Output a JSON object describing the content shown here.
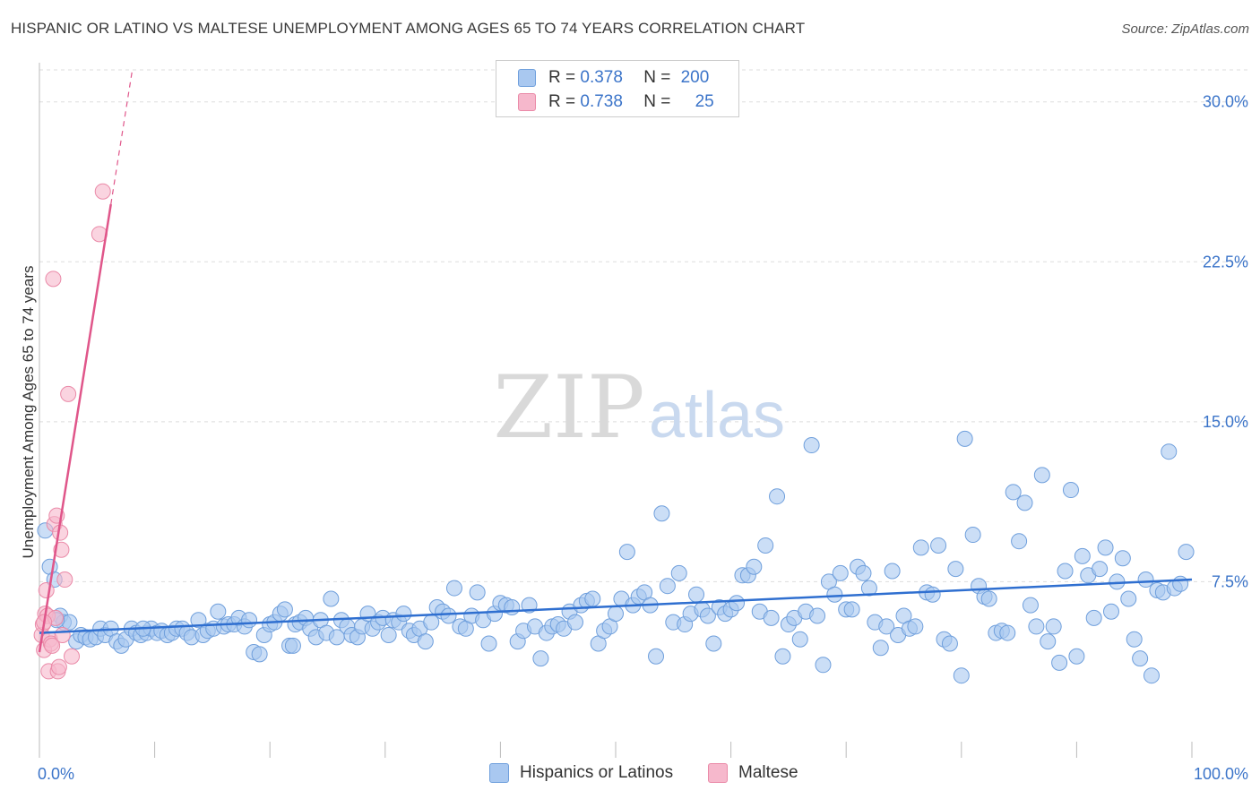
{
  "title": "HISPANIC OR LATINO VS MALTESE UNEMPLOYMENT AMONG AGES 65 TO 74 YEARS CORRELATION CHART",
  "source": "Source: ZipAtlas.com",
  "watermark": {
    "zip": "ZIP",
    "atlas": "atlas"
  },
  "legend": {
    "rows": [
      {
        "r_label": "R =",
        "r_value": "0.378",
        "n_label": "N =",
        "n_value": "200"
      },
      {
        "r_label": "R =",
        "r_value": "0.738",
        "n_label": "N =",
        "n_value": "25"
      }
    ]
  },
  "bottom_legend": [
    "Hispanics or Latinos",
    "Maltese"
  ],
  "colors": {
    "blue_fill": "#a9c8f0",
    "blue_stroke": "#6f9fdc",
    "blue_line": "#2f6fd0",
    "pink_fill": "#f6b8cc",
    "pink_stroke": "#ea8aa8",
    "pink_line": "#e0568a",
    "tick_text": "#3b74c9",
    "grid": "#dddddd"
  },
  "chart_data": {
    "type": "scatter",
    "title": "HISPANIC OR LATINO VS MALTESE UNEMPLOYMENT AMONG AGES 65 TO 74 YEARS CORRELATION CHART",
    "xlabel": "",
    "ylabel": "Unemployment Among Ages 65 to 74 years",
    "xlim": [
      0,
      100
    ],
    "ylim": [
      0,
      31.5
    ],
    "x_tick_labels": [
      "0.0%",
      "100.0%"
    ],
    "y_ticks": [
      7.5,
      15.0,
      22.5,
      30.0
    ],
    "y_tick_labels": [
      "7.5%",
      "15.0%",
      "22.5%",
      "30.0%"
    ],
    "grid": true,
    "legend_position": "top-center",
    "series": [
      {
        "name": "Hispanics or Latinos",
        "R": 0.378,
        "N": 200,
        "trend": {
          "x": [
            0,
            100
          ],
          "y": [
            5.1,
            7.6
          ]
        },
        "points": [
          [
            0.5,
            9.9
          ],
          [
            0.9,
            8.2
          ],
          [
            1.3,
            7.6
          ],
          [
            1.8,
            5.9
          ],
          [
            2.1,
            5.6
          ],
          [
            2.6,
            5.6
          ],
          [
            3.2,
            4.7
          ],
          [
            3.6,
            5.0
          ],
          [
            4.0,
            4.9
          ],
          [
            4.4,
            4.8
          ],
          [
            4.9,
            4.9
          ],
          [
            5.3,
            5.3
          ],
          [
            5.7,
            5.0
          ],
          [
            6.2,
            5.3
          ],
          [
            6.7,
            4.7
          ],
          [
            7.1,
            4.5
          ],
          [
            7.5,
            4.8
          ],
          [
            8.0,
            5.3
          ],
          [
            8.4,
            5.1
          ],
          [
            8.8,
            5.0
          ],
          [
            9.3,
            5.1
          ],
          [
            9.7,
            5.3
          ],
          [
            10.2,
            5.1
          ],
          [
            10.6,
            5.2
          ],
          [
            11.1,
            5.0
          ],
          [
            11.5,
            5.1
          ],
          [
            11.9,
            5.3
          ],
          [
            12.4,
            5.3
          ],
          [
            12.8,
            5.1
          ],
          [
            13.2,
            4.9
          ],
          [
            13.8,
            5.7
          ],
          [
            14.2,
            5.0
          ],
          [
            14.6,
            5.2
          ],
          [
            15.1,
            5.3
          ],
          [
            15.5,
            6.1
          ],
          [
            16.0,
            5.4
          ],
          [
            16.4,
            5.5
          ],
          [
            16.9,
            5.5
          ],
          [
            17.3,
            5.8
          ],
          [
            17.8,
            5.4
          ],
          [
            18.2,
            5.7
          ],
          [
            18.6,
            4.2
          ],
          [
            19.1,
            4.1
          ],
          [
            19.5,
            5.0
          ],
          [
            20.0,
            5.5
          ],
          [
            20.4,
            5.6
          ],
          [
            20.9,
            6.0
          ],
          [
            21.3,
            6.2
          ],
          [
            21.7,
            4.5
          ],
          [
            22.2,
            5.5
          ],
          [
            22.6,
            5.6
          ],
          [
            23.1,
            5.8
          ],
          [
            23.5,
            5.3
          ],
          [
            24.0,
            4.9
          ],
          [
            24.4,
            5.7
          ],
          [
            24.9,
            5.1
          ],
          [
            25.3,
            6.7
          ],
          [
            25.8,
            4.9
          ],
          [
            26.2,
            5.7
          ],
          [
            26.7,
            5.4
          ],
          [
            27.1,
            5.0
          ],
          [
            27.6,
            4.9
          ],
          [
            28.0,
            5.4
          ],
          [
            28.5,
            6.0
          ],
          [
            28.9,
            5.3
          ],
          [
            29.4,
            5.6
          ],
          [
            29.8,
            5.8
          ],
          [
            30.3,
            5.0
          ],
          [
            30.7,
            5.7
          ],
          [
            31.2,
            5.6
          ],
          [
            31.6,
            6.0
          ],
          [
            32.1,
            5.2
          ],
          [
            32.5,
            5.0
          ],
          [
            33.0,
            5.3
          ],
          [
            33.5,
            4.7
          ],
          [
            34.0,
            5.6
          ],
          [
            34.5,
            6.3
          ],
          [
            35.0,
            6.1
          ],
          [
            35.5,
            5.9
          ],
          [
            36.0,
            7.2
          ],
          [
            36.5,
            5.4
          ],
          [
            37.0,
            5.3
          ],
          [
            37.5,
            5.9
          ],
          [
            38.0,
            7.0
          ],
          [
            38.5,
            5.7
          ],
          [
            39.0,
            4.6
          ],
          [
            39.5,
            6.0
          ],
          [
            40.0,
            6.5
          ],
          [
            40.5,
            6.4
          ],
          [
            41.0,
            6.3
          ],
          [
            41.5,
            4.7
          ],
          [
            42.0,
            5.2
          ],
          [
            42.5,
            6.4
          ],
          [
            43.0,
            5.4
          ],
          [
            43.5,
            3.9
          ],
          [
            44.0,
            5.1
          ],
          [
            44.5,
            5.4
          ],
          [
            45.0,
            5.5
          ],
          [
            45.5,
            5.3
          ],
          [
            46.0,
            6.1
          ],
          [
            46.5,
            5.6
          ],
          [
            47.0,
            6.4
          ],
          [
            47.5,
            6.6
          ],
          [
            48.0,
            6.7
          ],
          [
            48.5,
            4.6
          ],
          [
            49.0,
            5.2
          ],
          [
            49.5,
            5.4
          ],
          [
            50.0,
            6.0
          ],
          [
            50.5,
            6.7
          ],
          [
            51.0,
            8.9
          ],
          [
            51.5,
            6.4
          ],
          [
            52.0,
            6.8
          ],
          [
            52.5,
            7.0
          ],
          [
            53.0,
            6.4
          ],
          [
            53.5,
            4.0
          ],
          [
            54.0,
            10.7
          ],
          [
            54.5,
            7.3
          ],
          [
            55.0,
            5.6
          ],
          [
            55.5,
            7.9
          ],
          [
            56.0,
            5.5
          ],
          [
            56.5,
            6.0
          ],
          [
            57.0,
            6.9
          ],
          [
            57.5,
            6.2
          ],
          [
            58.0,
            5.9
          ],
          [
            58.5,
            4.6
          ],
          [
            59.0,
            6.3
          ],
          [
            59.5,
            6.0
          ],
          [
            60.0,
            6.2
          ],
          [
            60.5,
            6.5
          ],
          [
            61.0,
            7.8
          ],
          [
            61.5,
            7.8
          ],
          [
            62.0,
            8.2
          ],
          [
            62.5,
            6.1
          ],
          [
            63.0,
            9.2
          ],
          [
            63.5,
            5.8
          ],
          [
            64.0,
            11.5
          ],
          [
            64.5,
            4.0
          ],
          [
            65.0,
            5.5
          ],
          [
            65.5,
            5.8
          ],
          [
            66.0,
            4.8
          ],
          [
            66.5,
            6.1
          ],
          [
            67.0,
            13.9
          ],
          [
            67.5,
            5.9
          ],
          [
            68.0,
            3.6
          ],
          [
            68.5,
            7.5
          ],
          [
            69.0,
            6.9
          ],
          [
            69.5,
            7.9
          ],
          [
            70.0,
            6.2
          ],
          [
            70.5,
            6.2
          ],
          [
            71.0,
            8.2
          ],
          [
            71.5,
            7.9
          ],
          [
            72.0,
            7.2
          ],
          [
            72.5,
            5.6
          ],
          [
            73.0,
            4.4
          ],
          [
            73.5,
            5.4
          ],
          [
            74.0,
            8.0
          ],
          [
            74.5,
            5.0
          ],
          [
            75.0,
            5.9
          ],
          [
            75.5,
            5.3
          ],
          [
            76.0,
            5.4
          ],
          [
            76.5,
            9.1
          ],
          [
            77.0,
            7.0
          ],
          [
            77.5,
            6.9
          ],
          [
            78.0,
            9.2
          ],
          [
            78.5,
            4.8
          ],
          [
            79.0,
            4.6
          ],
          [
            79.5,
            8.1
          ],
          [
            80.0,
            3.1
          ],
          [
            80.3,
            14.2
          ],
          [
            81.0,
            9.7
          ],
          [
            81.5,
            7.3
          ],
          [
            82.0,
            6.8
          ],
          [
            82.4,
            6.7
          ],
          [
            83.0,
            5.1
          ],
          [
            83.5,
            5.2
          ],
          [
            84.0,
            5.1
          ],
          [
            84.5,
            11.7
          ],
          [
            85.0,
            9.4
          ],
          [
            85.5,
            11.2
          ],
          [
            86.0,
            6.4
          ],
          [
            86.5,
            5.4
          ],
          [
            87.0,
            12.5
          ],
          [
            87.5,
            4.7
          ],
          [
            88.0,
            5.4
          ],
          [
            88.5,
            3.7
          ],
          [
            89.0,
            8.0
          ],
          [
            89.5,
            11.8
          ],
          [
            90.0,
            4.0
          ],
          [
            90.5,
            8.7
          ],
          [
            91.0,
            7.8
          ],
          [
            91.5,
            5.8
          ],
          [
            92.0,
            8.1
          ],
          [
            92.5,
            9.1
          ],
          [
            93.0,
            6.1
          ],
          [
            93.5,
            7.5
          ],
          [
            94.0,
            8.6
          ],
          [
            94.5,
            6.7
          ],
          [
            95.0,
            4.8
          ],
          [
            95.5,
            3.9
          ],
          [
            96.0,
            7.6
          ],
          [
            96.5,
            3.1
          ],
          [
            97.0,
            7.1
          ],
          [
            97.5,
            7.0
          ],
          [
            98.0,
            13.6
          ],
          [
            98.5,
            7.2
          ],
          [
            99.0,
            7.4
          ],
          [
            99.5,
            8.9
          ],
          [
            1.5,
            5.7
          ],
          [
            9.0,
            5.3
          ],
          [
            22.0,
            4.5
          ]
        ]
      },
      {
        "name": "Maltese",
        "R": 0.738,
        "N": 25,
        "trend": {
          "x": [
            0,
            6.2
          ],
          "y": [
            4.2,
            25.2
          ]
        },
        "points": [
          [
            0.2,
            5.0
          ],
          [
            0.3,
            5.5
          ],
          [
            0.4,
            4.3
          ],
          [
            0.5,
            6.0
          ],
          [
            0.6,
            7.1
          ],
          [
            0.7,
            5.9
          ],
          [
            0.8,
            3.3
          ],
          [
            0.9,
            4.8
          ],
          [
            1.0,
            4.6
          ],
          [
            1.1,
            4.5
          ],
          [
            1.2,
            21.7
          ],
          [
            1.3,
            10.2
          ],
          [
            1.4,
            5.8
          ],
          [
            1.5,
            10.6
          ],
          [
            1.6,
            3.3
          ],
          [
            1.7,
            3.5
          ],
          [
            1.8,
            9.8
          ],
          [
            1.9,
            9.0
          ],
          [
            2.0,
            5.0
          ],
          [
            2.2,
            7.6
          ],
          [
            2.5,
            16.3
          ],
          [
            2.8,
            4.0
          ],
          [
            5.2,
            23.8
          ],
          [
            5.5,
            25.8
          ],
          [
            0.4,
            5.6
          ]
        ]
      }
    ]
  }
}
